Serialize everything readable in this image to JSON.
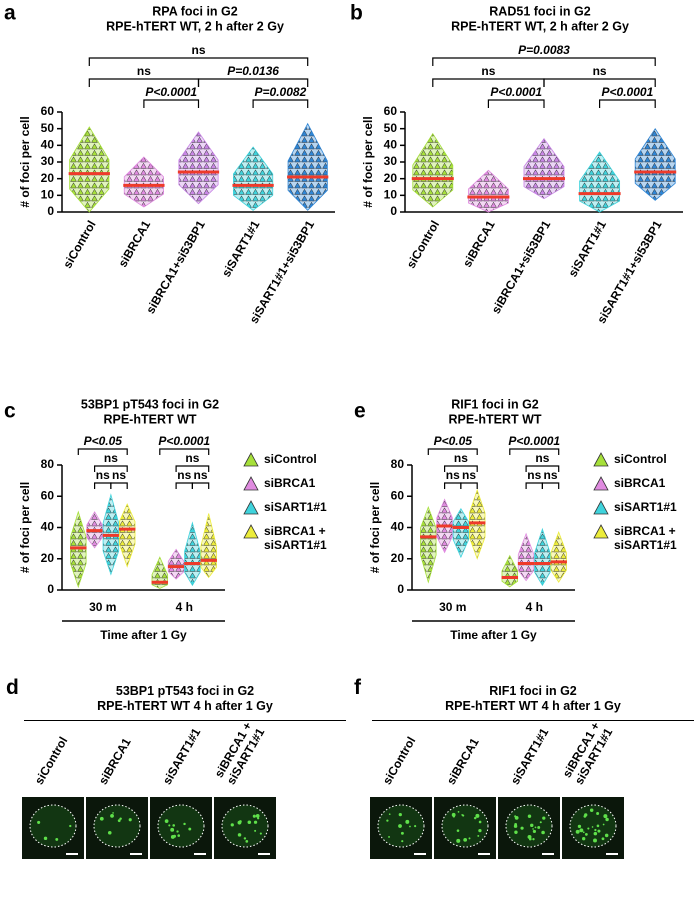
{
  "chart_data": [
    {
      "panel": "a",
      "type": "scatter",
      "title": "RPA foci in G2",
      "subtitle": "RPE-hTERT WT, 2 h after 2 Gy",
      "y_label": "# of foci per cell",
      "categories": [
        "siControl",
        "siBRCA1",
        "siBRCA1+si53BP1",
        "siSART1#1",
        "siSART1#1+si53BP1"
      ],
      "colors": [
        "#a6e03a",
        "#e08be0",
        "#c987e6",
        "#3fd3dc",
        "#2f86d6"
      ],
      "median_color": "#ee3a2a",
      "values": [
        23,
        16,
        24,
        16,
        21
      ],
      "min": [
        0,
        3,
        5,
        1,
        1
      ],
      "max": [
        51,
        33,
        48,
        39,
        53
      ],
      "ylim": [
        0,
        60
      ],
      "yticks": [
        0,
        10,
        20,
        30,
        40,
        50,
        60
      ],
      "brackets": [
        {
          "from": 1,
          "to": 2,
          "label": "P<0.0001"
        },
        {
          "from": 3,
          "to": 4,
          "label": "P=0.0082"
        },
        {
          "from": 0,
          "to": 2,
          "label": "ns"
        },
        {
          "from": 2,
          "to": 4,
          "label": "P=0.0136"
        },
        {
          "from": 0,
          "to": 4,
          "label": "ns"
        }
      ]
    },
    {
      "panel": "b",
      "type": "scatter",
      "title": "RAD51 foci in G2",
      "subtitle": "RPE-hTERT WT, 2 h after 2 Gy",
      "y_label": "# of foci per cell",
      "categories": [
        "siControl",
        "siBRCA1",
        "siBRCA1+si53BP1",
        "siSART1#1",
        "siSART1#1+si53BP1"
      ],
      "colors": [
        "#a6e03a",
        "#e08be0",
        "#c987e6",
        "#3fd3dc",
        "#2f86d6"
      ],
      "median_color": "#ee3a2a",
      "values": [
        20,
        9,
        20,
        11,
        24
      ],
      "min": [
        3,
        0,
        8,
        0,
        7
      ],
      "max": [
        47,
        25,
        44,
        36,
        50
      ],
      "ylim": [
        0,
        60
      ],
      "yticks": [
        0,
        10,
        20,
        30,
        40,
        50,
        60
      ],
      "brackets": [
        {
          "from": 1,
          "to": 2,
          "label": "P<0.0001"
        },
        {
          "from": 3,
          "to": 4,
          "label": "P<0.0001"
        },
        {
          "from": 0,
          "to": 2,
          "label": "ns"
        },
        {
          "from": 2,
          "to": 4,
          "label": "ns"
        },
        {
          "from": 0,
          "to": 4,
          "label": "P=0.0083"
        }
      ]
    },
    {
      "panel": "c",
      "type": "scatter",
      "title": "53BP1 pT543 foci in G2",
      "subtitle": "RPE-hTERT WT",
      "y_label": "# of foci per cell",
      "x_label": "Time after 1 Gy",
      "categories": [
        "30 m",
        "4 h"
      ],
      "median_color": "#ee3a2a",
      "series": [
        {
          "name": "siControl",
          "color": "#a6e03a",
          "values": [
            27,
            5
          ],
          "min": [
            2,
            1
          ],
          "max": [
            50,
            21
          ]
        },
        {
          "name": "siBRCA1",
          "color": "#e08be0",
          "values": [
            38,
            15
          ],
          "min": [
            27,
            7
          ],
          "max": [
            50,
            26
          ]
        },
        {
          "name": "siSART1#1",
          "color": "#3fd3dc",
          "values": [
            35,
            17
          ],
          "min": [
            10,
            3
          ],
          "max": [
            61,
            43
          ]
        },
        {
          "name": "siBRCA1 + siSART1#1",
          "color": "#ecec3a",
          "values": [
            39,
            19
          ],
          "min": [
            15,
            8
          ],
          "max": [
            55,
            49
          ]
        }
      ],
      "ylim": [
        0,
        80
      ],
      "yticks": [
        0,
        20,
        40,
        60,
        80
      ],
      "brackets": [
        {
          "group": 0,
          "from": 1,
          "to": 2,
          "label": "ns"
        },
        {
          "group": 0,
          "from": 2,
          "to": 3,
          "label": "ns"
        },
        {
          "group": 0,
          "from": 1,
          "to": 3,
          "label": "ns"
        },
        {
          "group": 0,
          "from": 0,
          "to": 3,
          "label": "P<0.05"
        },
        {
          "group": 1,
          "from": 1,
          "to": 2,
          "label": "ns"
        },
        {
          "group": 1,
          "from": 2,
          "to": 3,
          "label": "ns"
        },
        {
          "group": 1,
          "from": 1,
          "to": 3,
          "label": "ns"
        },
        {
          "group": 1,
          "from": 0,
          "to": 3,
          "label": "P<0.0001"
        }
      ]
    },
    {
      "panel": "e",
      "type": "scatter",
      "title": "RIF1 foci in G2",
      "subtitle": "RPE-hTERT WT",
      "y_label": "# of foci per cell",
      "x_label": "Time after 1 Gy",
      "categories": [
        "30 m",
        "4 h"
      ],
      "median_color": "#ee3a2a",
      "series": [
        {
          "name": "siControl",
          "color": "#a6e03a",
          "values": [
            34,
            8
          ],
          "min": [
            5,
            2
          ],
          "max": [
            53,
            22
          ]
        },
        {
          "name": "siBRCA1",
          "color": "#e08be0",
          "values": [
            41,
            17
          ],
          "min": [
            24,
            6
          ],
          "max": [
            58,
            36
          ]
        },
        {
          "name": "siSART1#1",
          "color": "#3fd3dc",
          "values": [
            40,
            17
          ],
          "min": [
            21,
            3
          ],
          "max": [
            52,
            39
          ]
        },
        {
          "name": "siBRCA1 + siSART1#1",
          "color": "#ecec3a",
          "values": [
            43,
            18
          ],
          "min": [
            20,
            5
          ],
          "max": [
            64,
            37
          ]
        }
      ],
      "ylim": [
        0,
        80
      ],
      "yticks": [
        0,
        20,
        40,
        60,
        80
      ],
      "brackets": [
        {
          "group": 0,
          "from": 1,
          "to": 2,
          "label": "ns"
        },
        {
          "group": 0,
          "from": 2,
          "to": 3,
          "label": "ns"
        },
        {
          "group": 0,
          "from": 1,
          "to": 3,
          "label": "ns"
        },
        {
          "group": 0,
          "from": 0,
          "to": 3,
          "label": "P<0.05"
        },
        {
          "group": 1,
          "from": 1,
          "to": 2,
          "label": "ns"
        },
        {
          "group": 1,
          "from": 2,
          "to": 3,
          "label": "ns"
        },
        {
          "group": 1,
          "from": 1,
          "to": 3,
          "label": "ns"
        },
        {
          "group": 1,
          "from": 0,
          "to": 3,
          "label": "P<0.0001"
        }
      ]
    }
  ],
  "image_panels": [
    {
      "panel": "d",
      "title": "53BP1 pT543 foci in G2",
      "subtitle": "RPE-hTERT WT 4 h after 1 Gy",
      "labels": [
        "siControl",
        "siBRCA1",
        "siSART1#1",
        "siBRCA1 + siSART1#1"
      ]
    },
    {
      "panel": "f",
      "title": "RIF1 foci in G2",
      "subtitle": "RPE-hTERT WT 4 h after 1 Gy",
      "labels": [
        "siControl",
        "siBRCA1",
        "siSART1#1",
        "siBRCA1 + siSART1#1"
      ]
    }
  ]
}
